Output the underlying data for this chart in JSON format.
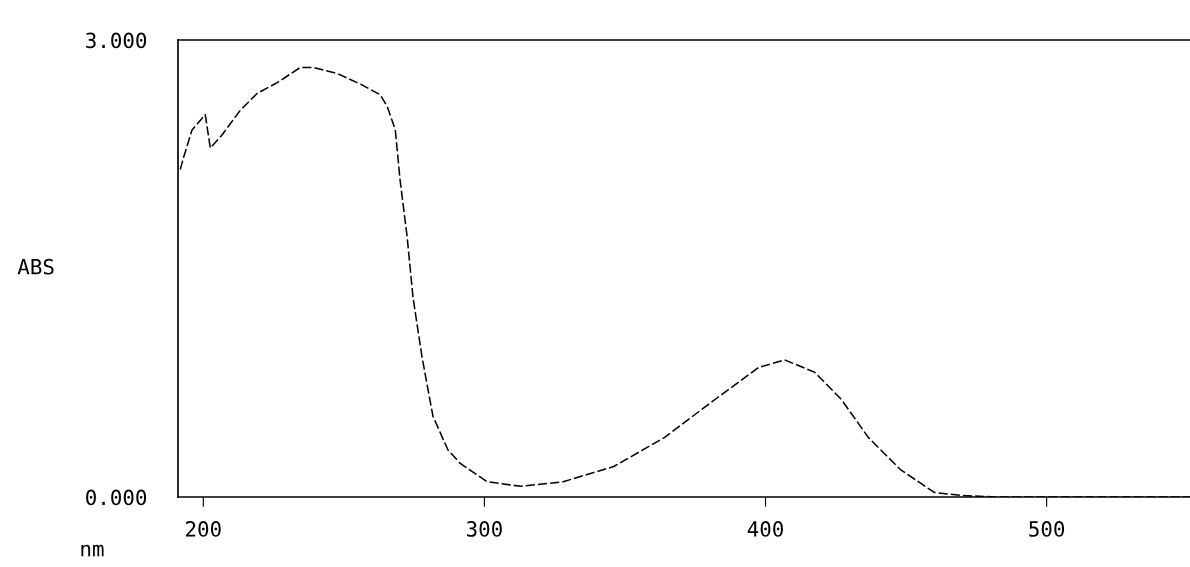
{
  "chart_data": {
    "type": "line",
    "xlabel": "nm",
    "ylabel": "ABS",
    "x": [
      191.8,
      193,
      196,
      200.7,
      202.5,
      206.8,
      213.2,
      219.2,
      226.3,
      234.5,
      239,
      247.7,
      255.9,
      263,
      265.5,
      268.3,
      270,
      272.5,
      274.6,
      277.8,
      281.7,
      287,
      291.4,
      301,
      312.9,
      328,
      346,
      364,
      382,
      397.5,
      406.8,
      417.4,
      427,
      436.6,
      448,
      460,
      470,
      482,
      500,
      520,
      551
    ],
    "series": [
      {
        "color": "#000000",
        "values": [
          2.15,
          2.23,
          2.41,
          2.51,
          2.29,
          2.38,
          2.54,
          2.65,
          2.72,
          2.82,
          2.82,
          2.78,
          2.71,
          2.64,
          2.56,
          2.41,
          2.08,
          1.71,
          1.31,
          0.92,
          0.53,
          0.31,
          0.22,
          0.1,
          0.07,
          0.1,
          0.2,
          0.39,
          0.64,
          0.85,
          0.9,
          0.82,
          0.64,
          0.39,
          0.18,
          0.03,
          0.01,
          0,
          0,
          0,
          0
        ]
      }
    ],
    "xlim": [
      191,
      551
    ],
    "ylim": [
      0,
      3
    ],
    "xticks": [
      200,
      300,
      400,
      500
    ],
    "yticks": [
      {
        "value": 0,
        "label": "0.000"
      },
      {
        "value": 3,
        "label": "3.000"
      }
    ],
    "grid": false,
    "legend": false,
    "marker": "none",
    "line_style": "dashed"
  }
}
